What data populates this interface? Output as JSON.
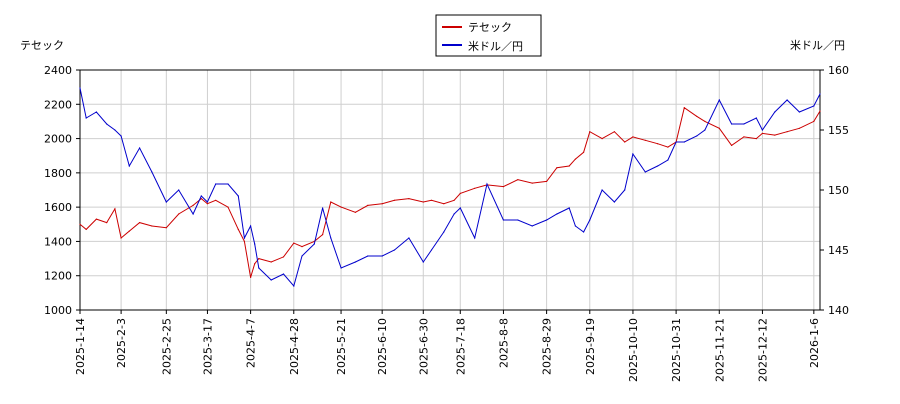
{
  "chart_data": {
    "type": "line",
    "legend_position": "top-center",
    "grid": true,
    "y_left": {
      "label": "テセック",
      "ylim": [
        1000,
        2400
      ],
      "ticks": [
        1000,
        1200,
        1400,
        1600,
        1800,
        2000,
        2200,
        2400
      ]
    },
    "y_right": {
      "label": "米ドル／円",
      "ylim": [
        140,
        160
      ],
      "ticks": [
        140,
        145,
        150,
        155,
        160
      ]
    },
    "x_range": [
      "2025-01-14",
      "2026-01-09"
    ],
    "x_ticks": [
      "2025-1-14",
      "2025-2-3",
      "2025-2-25",
      "2025-3-17",
      "2025-4-7",
      "2025-4-28",
      "2025-5-21",
      "2025-6-10",
      "2025-6-30",
      "2025-7-18",
      "2025-8-8",
      "2025-8-29",
      "2025-9-19",
      "2025-10-10",
      "2025-10-31",
      "2025-11-21",
      "2025-12-12",
      "2026-1-6"
    ],
    "x_tick_dates": [
      "2025-01-14",
      "2025-02-03",
      "2025-02-25",
      "2025-03-17",
      "2025-04-07",
      "2025-04-28",
      "2025-05-21",
      "2025-06-10",
      "2025-06-30",
      "2025-07-18",
      "2025-08-08",
      "2025-08-29",
      "2025-09-19",
      "2025-10-10",
      "2025-10-31",
      "2025-11-21",
      "2025-12-12",
      "2026-01-06"
    ],
    "series": [
      {
        "name": "テセック",
        "axis": "left",
        "color": "#cc0000",
        "x": [
          "2025-01-14",
          "2025-01-17",
          "2025-01-22",
          "2025-01-27",
          "2025-01-31",
          "2025-02-03",
          "2025-02-07",
          "2025-02-12",
          "2025-02-18",
          "2025-02-25",
          "2025-03-03",
          "2025-03-10",
          "2025-03-14",
          "2025-03-17",
          "2025-03-21",
          "2025-03-27",
          "2025-04-01",
          "2025-04-04",
          "2025-04-07",
          "2025-04-09",
          "2025-04-11",
          "2025-04-17",
          "2025-04-23",
          "2025-04-28",
          "2025-05-02",
          "2025-05-08",
          "2025-05-12",
          "2025-05-16",
          "2025-05-21",
          "2025-05-28",
          "2025-06-03",
          "2025-06-10",
          "2025-06-16",
          "2025-06-23",
          "2025-06-30",
          "2025-07-04",
          "2025-07-10",
          "2025-07-15",
          "2025-07-18",
          "2025-07-25",
          "2025-07-31",
          "2025-08-08",
          "2025-08-15",
          "2025-08-22",
          "2025-08-29",
          "2025-09-03",
          "2025-09-09",
          "2025-09-12",
          "2025-09-16",
          "2025-09-19",
          "2025-09-25",
          "2025-10-01",
          "2025-10-06",
          "2025-10-10",
          "2025-10-16",
          "2025-10-22",
          "2025-10-27",
          "2025-10-31",
          "2025-11-04",
          "2025-11-10",
          "2025-11-14",
          "2025-11-21",
          "2025-11-27",
          "2025-12-03",
          "2025-12-09",
          "2025-12-12",
          "2025-12-18",
          "2025-12-24",
          "2025-12-30",
          "2026-01-06",
          "2026-01-09"
        ],
        "values": [
          1500,
          1470,
          1530,
          1510,
          1590,
          1420,
          1460,
          1510,
          1490,
          1480,
          1560,
          1610,
          1650,
          1620,
          1640,
          1600,
          1470,
          1400,
          1190,
          1270,
          1300,
          1280,
          1310,
          1390,
          1370,
          1400,
          1440,
          1630,
          1600,
          1570,
          1610,
          1620,
          1640,
          1650,
          1630,
          1640,
          1620,
          1640,
          1680,
          1710,
          1730,
          1720,
          1760,
          1740,
          1750,
          1830,
          1840,
          1880,
          1920,
          2040,
          2000,
          2040,
          1980,
          2010,
          1990,
          1970,
          1950,
          1980,
          2180,
          2130,
          2100,
          2060,
          1960,
          2010,
          2000,
          2030,
          2020,
          2040,
          2060,
          2100,
          2160
        ]
      },
      {
        "name": "米ドル／円",
        "axis": "right",
        "color": "#0000cc",
        "x": [
          "2025-01-14",
          "2025-01-17",
          "2025-01-22",
          "2025-01-27",
          "2025-01-31",
          "2025-02-03",
          "2025-02-07",
          "2025-02-12",
          "2025-02-18",
          "2025-02-25",
          "2025-03-03",
          "2025-03-10",
          "2025-03-14",
          "2025-03-17",
          "2025-03-21",
          "2025-03-27",
          "2025-04-01",
          "2025-04-04",
          "2025-04-07",
          "2025-04-09",
          "2025-04-11",
          "2025-04-17",
          "2025-04-23",
          "2025-04-28",
          "2025-05-02",
          "2025-05-08",
          "2025-05-12",
          "2025-05-16",
          "2025-05-21",
          "2025-05-28",
          "2025-06-03",
          "2025-06-10",
          "2025-06-16",
          "2025-06-23",
          "2025-06-30",
          "2025-07-04",
          "2025-07-10",
          "2025-07-15",
          "2025-07-18",
          "2025-07-25",
          "2025-07-31",
          "2025-08-08",
          "2025-08-15",
          "2025-08-22",
          "2025-08-29",
          "2025-09-03",
          "2025-09-09",
          "2025-09-12",
          "2025-09-16",
          "2025-09-19",
          "2025-09-25",
          "2025-10-01",
          "2025-10-06",
          "2025-10-10",
          "2025-10-16",
          "2025-10-22",
          "2025-10-27",
          "2025-10-31",
          "2025-11-04",
          "2025-11-10",
          "2025-11-14",
          "2025-11-21",
          "2025-11-27",
          "2025-12-03",
          "2025-12-09",
          "2025-12-12",
          "2025-12-18",
          "2025-12-24",
          "2025-12-30",
          "2026-01-06",
          "2026-01-09"
        ],
        "values": [
          158.5,
          156.0,
          156.5,
          155.5,
          155.0,
          154.5,
          152.0,
          153.5,
          151.5,
          149.0,
          150.0,
          148.0,
          149.5,
          149.0,
          150.5,
          150.5,
          149.5,
          146.0,
          147.0,
          145.5,
          143.5,
          142.5,
          143.0,
          142.0,
          144.5,
          145.5,
          148.5,
          146.0,
          143.5,
          144.0,
          144.5,
          144.5,
          145.0,
          146.0,
          144.0,
          145.0,
          146.5,
          148.0,
          148.5,
          146.0,
          150.5,
          147.5,
          147.5,
          147.0,
          147.5,
          148.0,
          148.5,
          147.0,
          146.5,
          147.5,
          150.0,
          149.0,
          150.0,
          153.0,
          151.5,
          152.0,
          152.5,
          154.0,
          154.0,
          154.5,
          155.0,
          157.5,
          155.5,
          155.5,
          156.0,
          155.0,
          156.5,
          157.5,
          156.5,
          157.0,
          158.0
        ]
      }
    ]
  }
}
